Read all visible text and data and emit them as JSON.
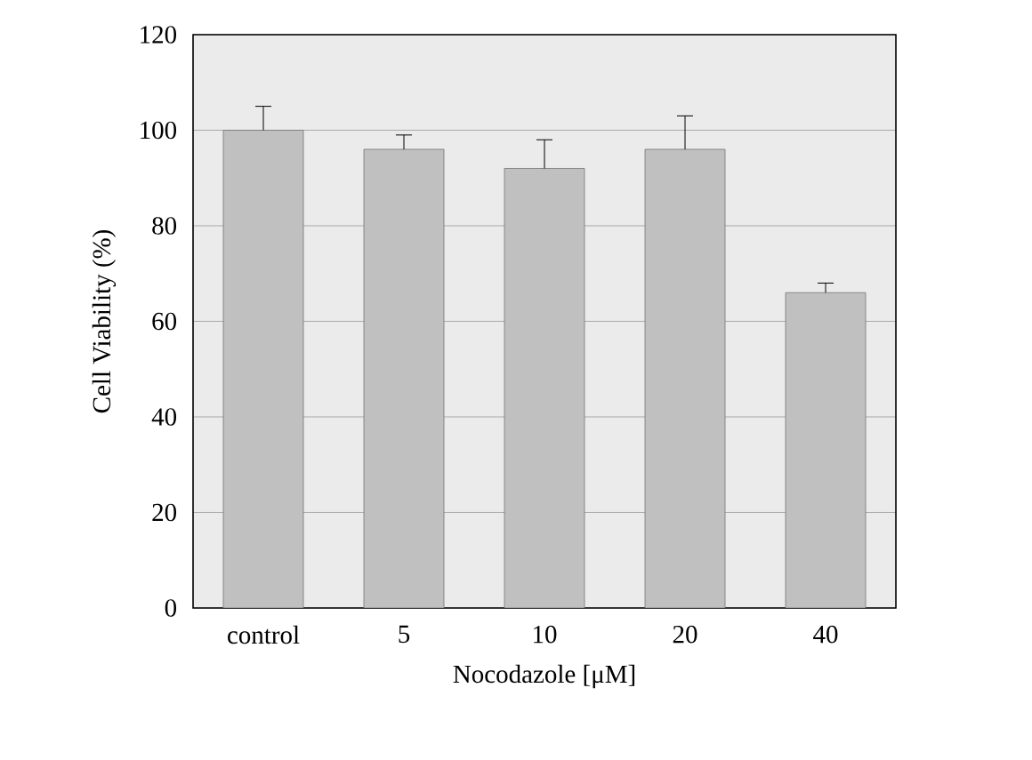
{
  "chart_data": {
    "type": "bar",
    "xlabel": "Nocodazole [μM]",
    "ylabel": "Cell Viability (%)",
    "categories": [
      "control",
      "5",
      "10",
      "20",
      "40"
    ],
    "values": [
      100,
      96,
      92,
      96,
      66
    ],
    "errors": [
      [
        100,
        105
      ],
      [
        96,
        99
      ],
      [
        92,
        98
      ],
      [
        96,
        103
      ],
      [
        66,
        68
      ]
    ],
    "color": "#c0c0c0",
    "ylim": [
      0,
      120
    ],
    "yticks": [
      0,
      20,
      40,
      60,
      80,
      100,
      120
    ],
    "grid": "y"
  }
}
